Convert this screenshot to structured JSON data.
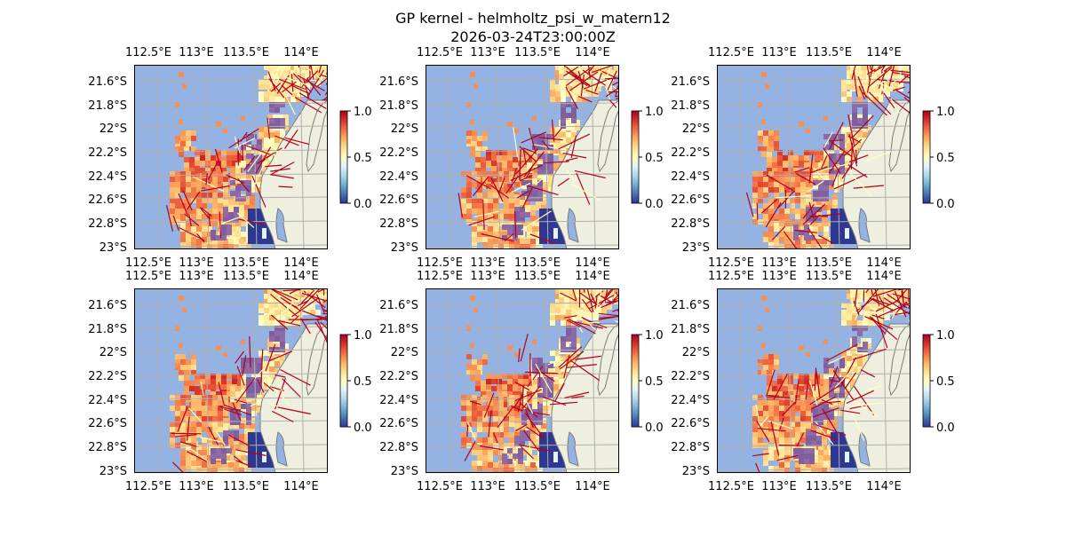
{
  "figure": {
    "title": "GP kernel - helmholtz_psi_w_matern12",
    "timestamp": "2026-03-24T23:00:00Z"
  },
  "axes": {
    "lon_ticks": [
      "112.5°E",
      "113°E",
      "113.5°E",
      "114°E"
    ],
    "lat_ticks": [
      "21.6°S",
      "21.8°S",
      "22°S",
      "22.2°S",
      "22.4°S",
      "22.6°S",
      "22.8°S",
      "23°S"
    ],
    "lon_range": [
      112.3,
      114.2
    ],
    "lat_range": [
      -23.0,
      -21.45
    ]
  },
  "colorbar": {
    "ticks": [
      "0.0",
      "0.5",
      "1.0"
    ],
    "range": [
      0.0,
      1.0
    ],
    "colormap": "RdYlBu_r"
  },
  "colors": {
    "ocean": "#95b3e2",
    "land": "#efefdf",
    "coast": "#7a7a7a",
    "grid": "#b0b0b0",
    "arrow": "#b2001d"
  },
  "panels": [
    {
      "id": "panel-1",
      "seed": 11
    },
    {
      "id": "panel-2",
      "seed": 23
    },
    {
      "id": "panel-3",
      "seed": 37
    },
    {
      "id": "panel-4",
      "seed": 41
    },
    {
      "id": "panel-5",
      "seed": 59
    },
    {
      "id": "panel-6",
      "seed": 73
    }
  ]
}
